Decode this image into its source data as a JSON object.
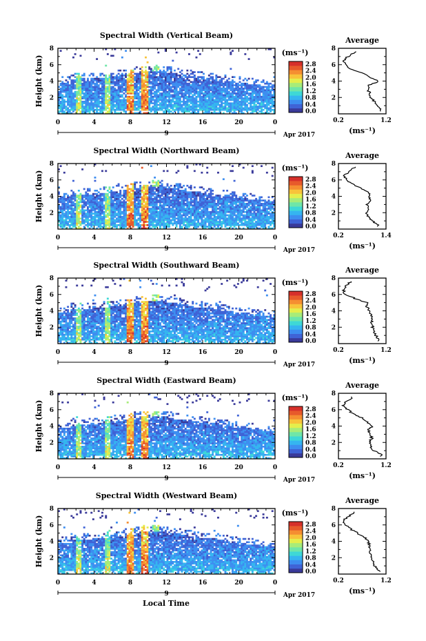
{
  "colormap": [
    "#3a3a9a",
    "#3f63d6",
    "#3d8ef0",
    "#35b5f0",
    "#3ed8d6",
    "#6fe6a8",
    "#a7ec79",
    "#e4ee4c",
    "#f8c33a",
    "#f58e31",
    "#e75a2b",
    "#d6302a"
  ],
  "colorbar": {
    "unit": "(ms⁻¹)",
    "ticks": [
      "2.8",
      "2.4",
      "2.0",
      "1.6",
      "1.2",
      "0.8",
      "0.4",
      "0.0"
    ]
  },
  "x_axis": {
    "ticks": [
      "0",
      "4",
      "8",
      "12",
      "16",
      "20",
      "0"
    ],
    "day_label": "9",
    "date_label": "Apr 2017",
    "label": "Local Time"
  },
  "y_axis": {
    "label": "Height (km)",
    "ticks": [
      "2",
      "4",
      "6",
      "8"
    ]
  },
  "profile_title": "Average",
  "profile_xlabel": "(ms⁻¹)",
  "chart_data": [
    {
      "type": "heatmap",
      "title": "Spectral Width (Vertical Beam)",
      "ylabel": "Height (km)",
      "xlabel": "Local Time",
      "xlim": [
        0,
        24
      ],
      "ylim": [
        0,
        8
      ],
      "x_ticks": [
        0,
        4,
        8,
        12,
        16,
        20,
        24
      ],
      "colorbar_range": [
        0.0,
        3.0
      ],
      "profile": {
        "type": "line",
        "title": "Average",
        "xlabel": "(ms⁻¹)",
        "x_ticks": [
          "0.2",
          "1.2"
        ],
        "xlim": [
          0.2,
          1.2
        ],
        "ylim": [
          0,
          8
        ],
        "heights": [
          0.5,
          1,
          1.5,
          2,
          2.5,
          3,
          3.5,
          4,
          4.5,
          5,
          5.5,
          6,
          6.5,
          7,
          7.5
        ],
        "values": [
          1.1,
          1.0,
          0.95,
          0.88,
          0.86,
          0.82,
          0.85,
          1.05,
          0.85,
          0.7,
          0.45,
          0.35,
          0.3,
          0.4,
          0.55
        ]
      }
    },
    {
      "type": "heatmap",
      "title": "Spectral Width (Northward Beam)",
      "ylabel": "Height (km)",
      "xlabel": "Local Time",
      "xlim": [
        0,
        24
      ],
      "ylim": [
        0,
        8
      ],
      "x_ticks": [
        0,
        4,
        8,
        12,
        16,
        20,
        24
      ],
      "colorbar_range": [
        0.0,
        3.0
      ],
      "profile": {
        "type": "line",
        "title": "Average",
        "xlabel": "(ms⁻¹)",
        "x_ticks": [
          "0.2",
          "1.4"
        ],
        "xlim": [
          0.2,
          1.4
        ],
        "ylim": [
          0,
          8
        ],
        "heights": [
          0.5,
          1,
          1.5,
          2,
          2.5,
          3,
          3.5,
          4,
          4.5,
          5,
          5.5,
          6,
          6.5,
          7,
          7.5
        ],
        "values": [
          1.2,
          1.05,
          0.95,
          0.9,
          0.95,
          0.92,
          1.0,
          0.96,
          0.98,
          0.75,
          0.55,
          0.4,
          0.35,
          0.45,
          0.6
        ]
      }
    },
    {
      "type": "heatmap",
      "title": "Spectral Width (Southward Beam)",
      "ylabel": "Height (km)",
      "xlabel": "Local Time",
      "xlim": [
        0,
        24
      ],
      "ylim": [
        0,
        8
      ],
      "x_ticks": [
        0,
        4,
        8,
        12,
        16,
        20,
        24
      ],
      "colorbar_range": [
        0.0,
        3.0
      ],
      "profile": {
        "type": "line",
        "title": "Average",
        "xlabel": "(ms⁻¹)",
        "x_ticks": [
          "0.2",
          "1.2"
        ],
        "xlim": [
          0.2,
          1.2
        ],
        "ylim": [
          0,
          8
        ],
        "heights": [
          0.5,
          1,
          1.5,
          2,
          2.5,
          3,
          3.5,
          4,
          4.5,
          5,
          5.5,
          6,
          6.5,
          7,
          7.5
        ],
        "values": [
          1.05,
          0.98,
          0.95,
          0.92,
          0.9,
          0.92,
          0.88,
          0.85,
          0.8,
          0.8,
          0.55,
          0.35,
          0.3,
          0.35,
          0.45
        ]
      }
    },
    {
      "type": "heatmap",
      "title": "Spectral Width (Eastward Beam)",
      "ylabel": "Height (km)",
      "xlabel": "Local Time",
      "xlim": [
        0,
        24
      ],
      "ylim": [
        0,
        8
      ],
      "x_ticks": [
        0,
        4,
        8,
        12,
        16,
        20,
        24
      ],
      "colorbar_range": [
        0.0,
        3.0
      ],
      "profile": {
        "type": "line",
        "title": "Average",
        "xlabel": "(ms⁻¹)",
        "x_ticks": [
          "0.2",
          "1.2"
        ],
        "xlim": [
          0.2,
          1.2
        ],
        "ylim": [
          0,
          8
        ],
        "heights": [
          0.5,
          1,
          1.5,
          2,
          2.5,
          3,
          3.5,
          4,
          4.5,
          5,
          5.5,
          6,
          6.5,
          7,
          7.5
        ],
        "values": [
          1.1,
          0.95,
          0.88,
          0.85,
          0.9,
          0.88,
          0.82,
          0.92,
          0.8,
          0.7,
          0.5,
          0.4,
          0.3,
          0.35,
          0.5
        ]
      }
    },
    {
      "type": "heatmap",
      "title": "Spectral Width (Westward Beam)",
      "ylabel": "Height (km)",
      "xlabel": "Local Time",
      "xlim": [
        0,
        24
      ],
      "ylim": [
        0,
        8
      ],
      "x_ticks": [
        0,
        4,
        8,
        12,
        16,
        20,
        24
      ],
      "colorbar_range": [
        0.0,
        3.0
      ],
      "profile": {
        "type": "line",
        "title": "Average",
        "xlabel": "(ms⁻¹)",
        "x_ticks": [
          "0.2",
          "1.2"
        ],
        "xlim": [
          0.2,
          1.2
        ],
        "ylim": [
          0,
          8
        ],
        "heights": [
          0.5,
          1,
          1.5,
          2,
          2.5,
          3,
          3.5,
          4,
          4.5,
          5,
          5.5,
          6,
          6.5,
          7,
          7.5
        ],
        "values": [
          1.05,
          0.95,
          0.92,
          0.9,
          0.88,
          0.86,
          0.85,
          0.82,
          0.75,
          0.6,
          0.45,
          0.35,
          0.3,
          0.4,
          0.55
        ]
      }
    }
  ]
}
